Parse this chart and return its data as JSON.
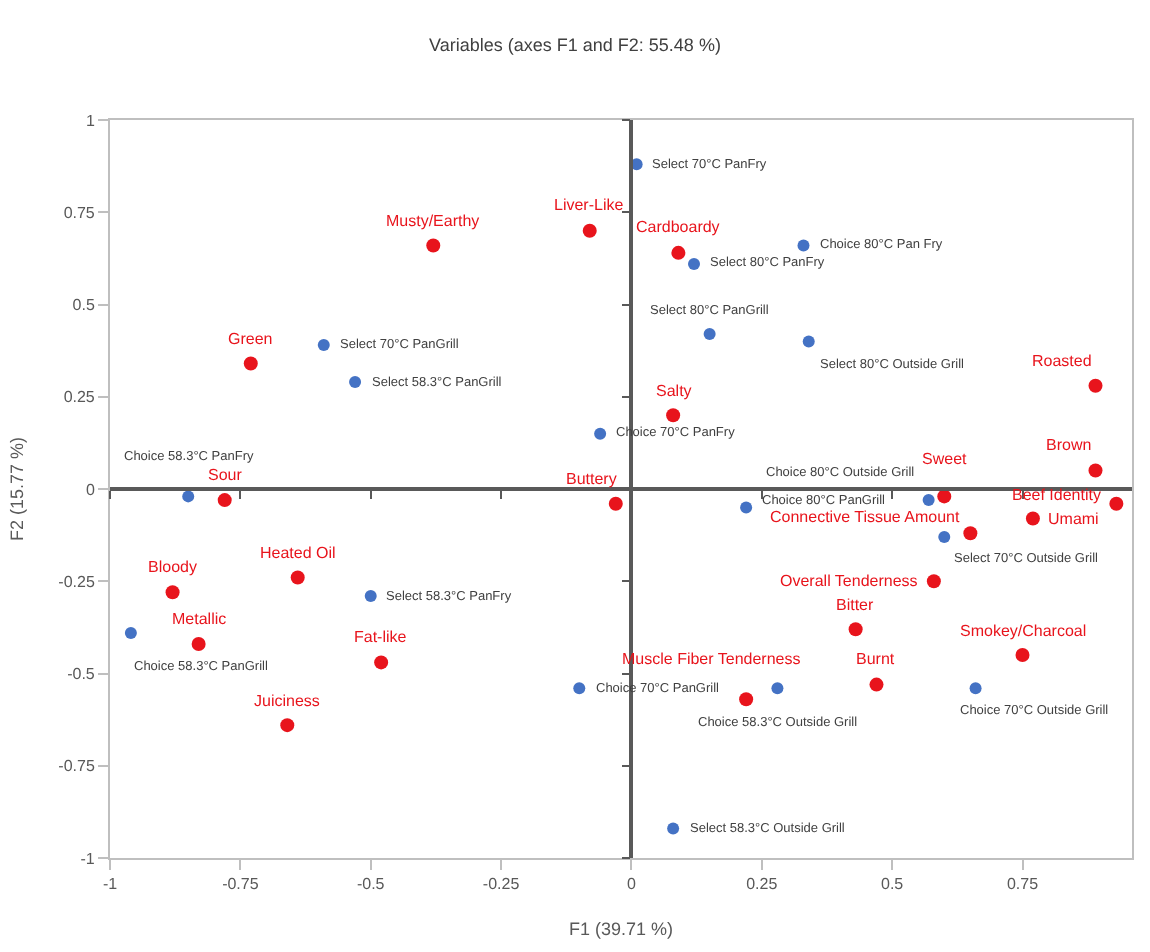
{
  "chart_data": {
    "type": "scatter",
    "title": "Variables (axes F1 and F2: 55.48 %)",
    "xlabel": "F1 (39.71 %)",
    "ylabel": "F2 (15.77 %)",
    "xlim": [
      -1,
      0.96
    ],
    "ylim": [
      -1,
      1
    ],
    "xticks": [
      -1,
      -0.75,
      -0.5,
      -0.25,
      0,
      0.25,
      0.5,
      0.75
    ],
    "yticks": [
      -1,
      -0.75,
      -0.5,
      -0.25,
      0,
      0.25,
      0.5,
      0.75,
      1
    ],
    "series": [
      {
        "color": "#4472c4",
        "x": [
          0.01,
          0.12,
          0.33,
          0.15,
          0.34,
          -0.06,
          0.22,
          0.57,
          0.6,
          0.28,
          0.66,
          -0.1,
          0.08,
          -0.59,
          -0.53,
          -0.85,
          -0.5,
          -0.96
        ],
        "values": [
          0.88,
          0.61,
          0.66,
          0.42,
          0.4,
          0.15,
          -0.05,
          -0.03,
          -0.13,
          -0.54,
          -0.54,
          -0.54,
          -0.92,
          0.39,
          0.29,
          -0.02,
          -0.29,
          -0.39
        ]
      },
      {
        "color": "#e8141c",
        "x": [
          -0.38,
          -0.08,
          0.09,
          -0.73,
          0.08,
          0.89,
          0.89,
          -0.03,
          -0.78,
          0.6,
          0.93,
          0.77,
          0.65,
          0.58,
          0.43,
          0.75,
          0.47,
          0.22,
          -0.64,
          -0.88,
          -0.83,
          -0.48,
          -0.66
        ],
        "values": [
          0.66,
          0.7,
          0.64,
          0.34,
          0.2,
          0.28,
          0.05,
          -0.04,
          -0.03,
          -0.02,
          -0.04,
          -0.08,
          -0.12,
          -0.25,
          -0.38,
          -0.45,
          -0.53,
          -0.57,
          -0.24,
          -0.28,
          -0.42,
          -0.47,
          -0.64
        ]
      }
    ],
    "annotations": [
      {
        "text": "Select 70°C PanFry",
        "x": 0.01,
        "y": 0.88
      },
      {
        "text": "Select 80°C PanFry",
        "x": 0.12,
        "y": 0.61
      },
      {
        "text": "Choice 80°C Pan Fry",
        "x": 0.33,
        "y": 0.66
      },
      {
        "text": "Select 80°C PanGrill",
        "x": 0.15,
        "y": 0.42
      },
      {
        "text": "Select 80°C Outside Grill",
        "x": 0.34,
        "y": 0.4
      },
      {
        "text": "Choice 70°C PanFry",
        "x": -0.06,
        "y": 0.15
      },
      {
        "text": "Choice 80°C PanGrill",
        "x": 0.22,
        "y": -0.05
      },
      {
        "text": "Choice 80°C Outside Grill",
        "x": 0.57,
        "y": -0.03
      },
      {
        "text": "Select 70°C Outside Grill",
        "x": 0.6,
        "y": -0.13
      },
      {
        "text": "Choice 58.3°C Outside Grill",
        "x": 0.28,
        "y": -0.54
      },
      {
        "text": "Choice 70°C Outside Grill",
        "x": 0.66,
        "y": -0.54
      },
      {
        "text": "Choice 70°C PanGrill",
        "x": -0.1,
        "y": -0.54
      },
      {
        "text": "Select 58.3°C Outside Grill",
        "x": 0.08,
        "y": -0.92
      },
      {
        "text": "Select 70°C PanGrill",
        "x": -0.59,
        "y": 0.39
      },
      {
        "text": "Select 58.3°C PanGrill",
        "x": -0.53,
        "y": 0.29
      },
      {
        "text": "Choice 58.3°C PanFry",
        "x": -0.85,
        "y": -0.02
      },
      {
        "text": "Select 58.3°C PanFry",
        "x": -0.5,
        "y": -0.29
      },
      {
        "text": "Choice 58.3°C PanGrill",
        "x": -0.96,
        "y": -0.39
      },
      {
        "text": "Musty/Earthy",
        "x": -0.38,
        "y": 0.66
      },
      {
        "text": "Liver-Like",
        "x": -0.08,
        "y": 0.7
      },
      {
        "text": "Cardboardy",
        "x": 0.09,
        "y": 0.64
      },
      {
        "text": "Green",
        "x": -0.73,
        "y": 0.34
      },
      {
        "text": "Salty",
        "x": 0.08,
        "y": 0.2
      },
      {
        "text": "Roasted",
        "x": 0.89,
        "y": 0.28
      },
      {
        "text": "Brown",
        "x": 0.89,
        "y": 0.05
      },
      {
        "text": "Buttery",
        "x": -0.03,
        "y": -0.04
      },
      {
        "text": "Sour",
        "x": -0.78,
        "y": -0.03
      },
      {
        "text": "Sweet",
        "x": 0.6,
        "y": -0.02
      },
      {
        "text": "Beef Identity",
        "x": 0.93,
        "y": -0.04
      },
      {
        "text": "Umami",
        "x": 0.77,
        "y": -0.08
      },
      {
        "text": "Connective Tissue Amount",
        "x": 0.65,
        "y": -0.12
      },
      {
        "text": "Overall Tenderness",
        "x": 0.58,
        "y": -0.25
      },
      {
        "text": "Bitter",
        "x": 0.43,
        "y": -0.38
      },
      {
        "text": "Smokey/Charcoal",
        "x": 0.75,
        "y": -0.45
      },
      {
        "text": "Burnt",
        "x": 0.47,
        "y": -0.53
      },
      {
        "text": "Muscle Fiber Tenderness",
        "x": 0.22,
        "y": -0.57
      },
      {
        "text": "Heated Oil",
        "x": -0.64,
        "y": -0.24
      },
      {
        "text": "Bloody",
        "x": -0.88,
        "y": -0.28
      },
      {
        "text": "Metallic",
        "x": -0.83,
        "y": -0.42
      },
      {
        "text": "Fat-like",
        "x": -0.48,
        "y": -0.47
      },
      {
        "text": "Juiciness",
        "x": -0.66,
        "y": -0.64
      }
    ]
  }
}
